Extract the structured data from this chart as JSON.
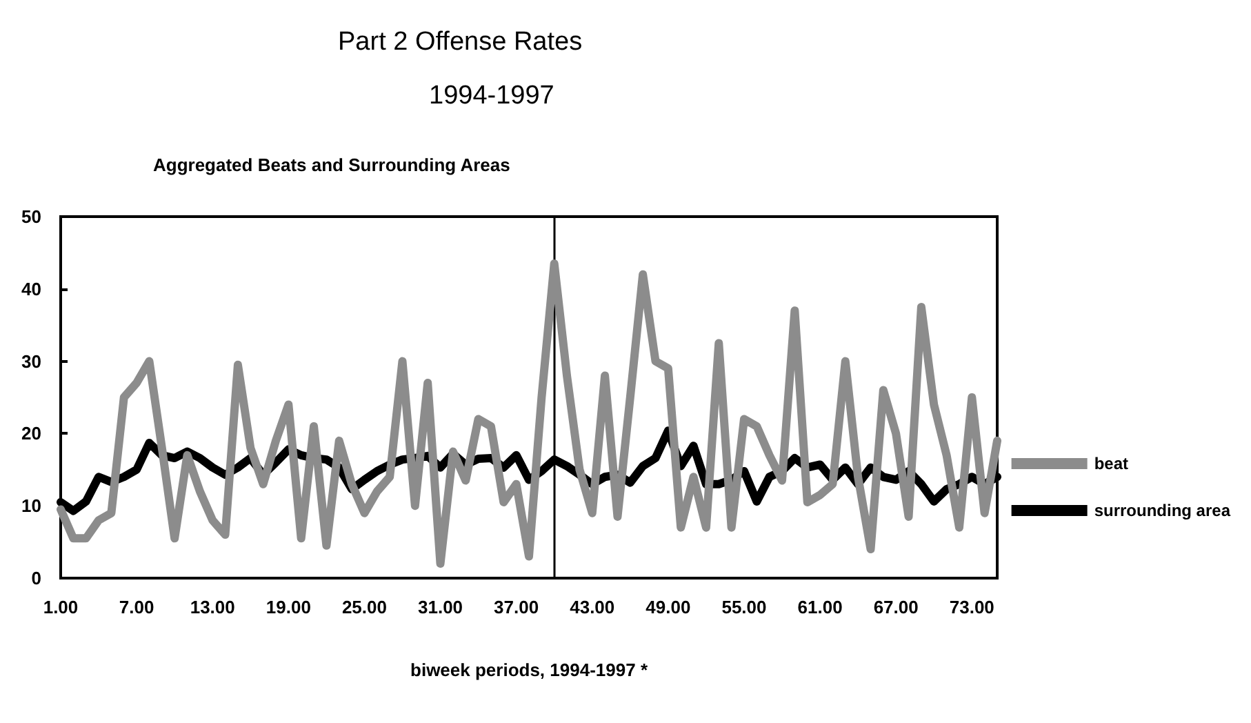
{
  "chart_data": {
    "type": "line",
    "title": "Part 2 Offense Rates",
    "subtitle": "1994-1997",
    "annotations": [
      "Aggregated Beats and Surrounding Areas"
    ],
    "xlabel": "biweek periods, 1994-1997 *",
    "x": [
      1,
      2,
      3,
      4,
      5,
      6,
      7,
      8,
      9,
      10,
      11,
      12,
      13,
      14,
      15,
      16,
      17,
      18,
      19,
      20,
      21,
      22,
      23,
      24,
      25,
      26,
      27,
      28,
      29,
      30,
      31,
      32,
      33,
      34,
      35,
      36,
      37,
      38,
      39,
      40,
      41,
      42,
      43,
      44,
      45,
      46,
      47,
      48,
      49,
      50,
      51,
      52,
      53,
      54,
      55,
      56,
      57,
      58,
      59,
      60,
      61,
      62,
      63,
      64,
      65,
      66,
      67,
      68,
      69,
      70,
      71,
      72,
      73,
      74,
      75
    ],
    "series": [
      {
        "name": "beat",
        "color": "#8c8c8c",
        "values": [
          9.5,
          5.5,
          5.5,
          8,
          9,
          25,
          27,
          30,
          18,
          5.5,
          17,
          12,
          8,
          6,
          29.5,
          18,
          13,
          19,
          24,
          5.5,
          21,
          4.5,
          19,
          13,
          9,
          12,
          14,
          30,
          10,
          27,
          2,
          17.5,
          13.5,
          22,
          21,
          10.5,
          13,
          3,
          25,
          43.5,
          28,
          15,
          9,
          28,
          8.5,
          25,
          42,
          30,
          29,
          7,
          14,
          7,
          32.5,
          7,
          22,
          21,
          17,
          13.5,
          37,
          10.5,
          11.5,
          13,
          30,
          14,
          4,
          26,
          20,
          8.5,
          37.5,
          24,
          17,
          7,
          25,
          9,
          19
        ]
      },
      {
        "name": "surrounding area",
        "color": "#000000",
        "values": [
          10.5,
          9.3,
          10.6,
          14,
          13.3,
          14,
          15,
          18.7,
          17,
          16.6,
          17.5,
          16.6,
          15.3,
          14.3,
          15.3,
          16.6,
          14.3,
          16,
          17.8,
          17,
          16.6,
          16.4,
          15.3,
          12.3,
          13.6,
          14.8,
          15.7,
          16.4,
          16.6,
          16.9,
          15.3,
          17.2,
          15.7,
          16.5,
          16.6,
          15.3,
          17,
          13.6,
          14.8,
          16.4,
          15.5,
          14.3,
          13,
          14,
          14.3,
          13.2,
          15.5,
          16.6,
          20.4,
          15.5,
          18.3,
          13,
          13,
          13.6,
          14.8,
          10.6,
          14,
          14.8,
          16.6,
          15.3,
          15.7,
          13.6,
          15.3,
          13,
          15.3,
          14,
          13.6,
          14.8,
          13,
          10.6,
          12.3,
          13,
          14,
          13,
          14
        ]
      }
    ],
    "xlim": [
      1,
      75
    ],
    "xticks": [
      {
        "value": 1,
        "label": "1.00"
      },
      {
        "value": 7,
        "label": "7.00"
      },
      {
        "value": 13,
        "label": "13.00"
      },
      {
        "value": 19,
        "label": "19.00"
      },
      {
        "value": 25,
        "label": "25.00"
      },
      {
        "value": 31,
        "label": "31.00"
      },
      {
        "value": 37,
        "label": "37.00"
      },
      {
        "value": 43,
        "label": "43.00"
      },
      {
        "value": 49,
        "label": "49.00"
      },
      {
        "value": 55,
        "label": "55.00"
      },
      {
        "value": 61,
        "label": "61.00"
      },
      {
        "value": 67,
        "label": "67.00"
      },
      {
        "value": 73,
        "label": "73.00"
      }
    ],
    "ylim": [
      0,
      50
    ],
    "yticks": [
      0,
      10,
      20,
      30,
      40,
      50
    ],
    "ref_lines": [
      {
        "axis": "x",
        "value": 40,
        "color": "#000000"
      }
    ],
    "grid": false,
    "legend": "right",
    "marker": "none",
    "line_style": "solid"
  }
}
